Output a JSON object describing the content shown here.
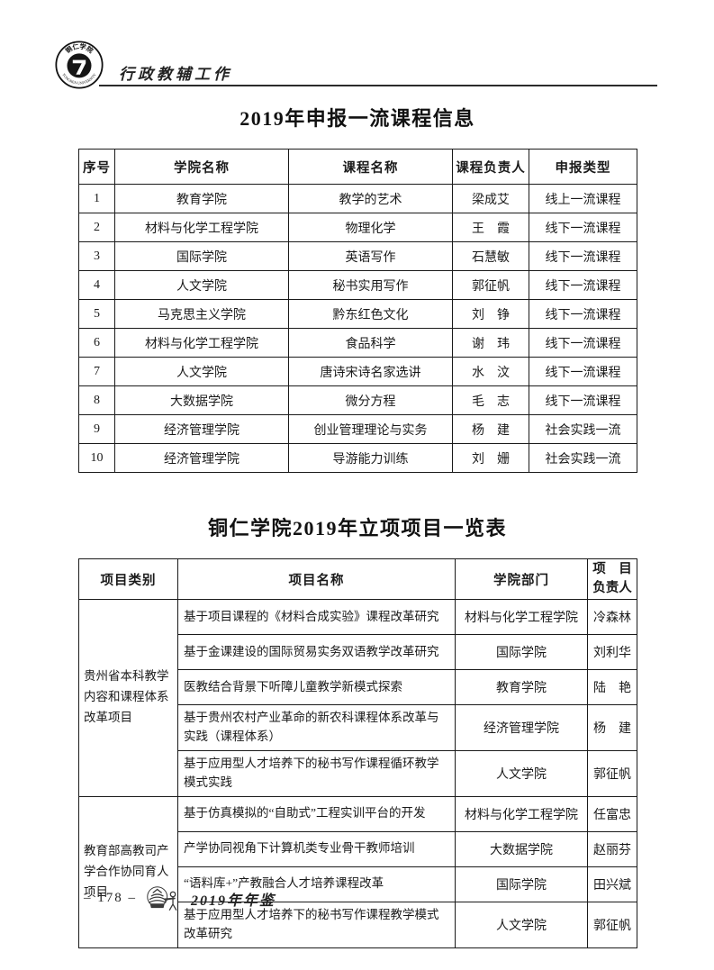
{
  "header": {
    "section_label": "行政教辅工作",
    "seal_top_text": "铜仁学院",
    "seal_bottom_text": "TONGREN UNIVERSITY"
  },
  "table1": {
    "title": "2019年申报一流课程信息",
    "columns": [
      "序号",
      "学院名称",
      "课程名称",
      "课程负责人",
      "申报类型"
    ],
    "rows": [
      [
        "1",
        "教育学院",
        "教学的艺术",
        "梁成艾",
        "线上一流课程"
      ],
      [
        "2",
        "材料与化学工程学院",
        "物理化学",
        "王　霞",
        "线下一流课程"
      ],
      [
        "3",
        "国际学院",
        "英语写作",
        "石慧敏",
        "线下一流课程"
      ],
      [
        "4",
        "人文学院",
        "秘书实用写作",
        "郭征帆",
        "线下一流课程"
      ],
      [
        "5",
        "马克思主义学院",
        "黔东红色文化",
        "刘　铮",
        "线下一流课程"
      ],
      [
        "6",
        "材料与化学工程学院",
        "食品科学",
        "谢　玮",
        "线下一流课程"
      ],
      [
        "7",
        "人文学院",
        "唐诗宋诗名家选讲",
        "水　汶",
        "线下一流课程"
      ],
      [
        "8",
        "大数据学院",
        "微分方程",
        "毛　志",
        "线下一流课程"
      ],
      [
        "9",
        "经济管理学院",
        "创业管理理论与实务",
        "杨　建",
        "社会实践一流"
      ],
      [
        "10",
        "经济管理学院",
        "导游能力训练",
        "刘　姗",
        "社会实践一流"
      ]
    ]
  },
  "table2": {
    "title": "铜仁学院2019年立项项目一览表",
    "columns": [
      "项目类别",
      "项目名称",
      "学院部门"
    ],
    "leader_header": {
      "line1": "项　目",
      "line2": "负责人"
    },
    "groups": [
      {
        "category": "贵州省本科教学内容和课程体系改革项目",
        "rows": [
          [
            "基于项目课程的《材料合成实验》课程改革研究",
            "材料与化学工程学院",
            "冷森林"
          ],
          [
            "基于金课建设的国际贸易实务双语教学改革研究",
            "国际学院",
            "刘利华"
          ],
          [
            "医教结合背景下听障儿童教学新模式探索",
            "教育学院",
            "陆　艳"
          ],
          [
            "基于贵州农村产业革命的新农科课程体系改革与实践（课程体系）",
            "经济管理学院",
            "杨　建"
          ],
          [
            "基于应用型人才培养下的秘书写作课程循环教学模式实践",
            "人文学院",
            "郭征帆"
          ]
        ]
      },
      {
        "category": "教育部高教司产学合作协同育人项目",
        "rows": [
          [
            "基于仿真模拟的“自助式”工程实训平台的开发",
            "材料与化学工程学院",
            "任富忠"
          ],
          [
            "产学协同视角下计算机类专业骨干教师培训",
            "大数据学院",
            "赵丽芬"
          ],
          [
            "“语料库+”产教融合人才培养课程改革",
            "国际学院",
            "田兴斌"
          ],
          [
            "基于应用型人才培养下的秘书写作课程教学模式改革研究",
            "人文学院",
            "郭征帆"
          ]
        ]
      }
    ]
  },
  "footer": {
    "page_number": "– 178 –",
    "yearbook_label": "2019年年鉴"
  }
}
